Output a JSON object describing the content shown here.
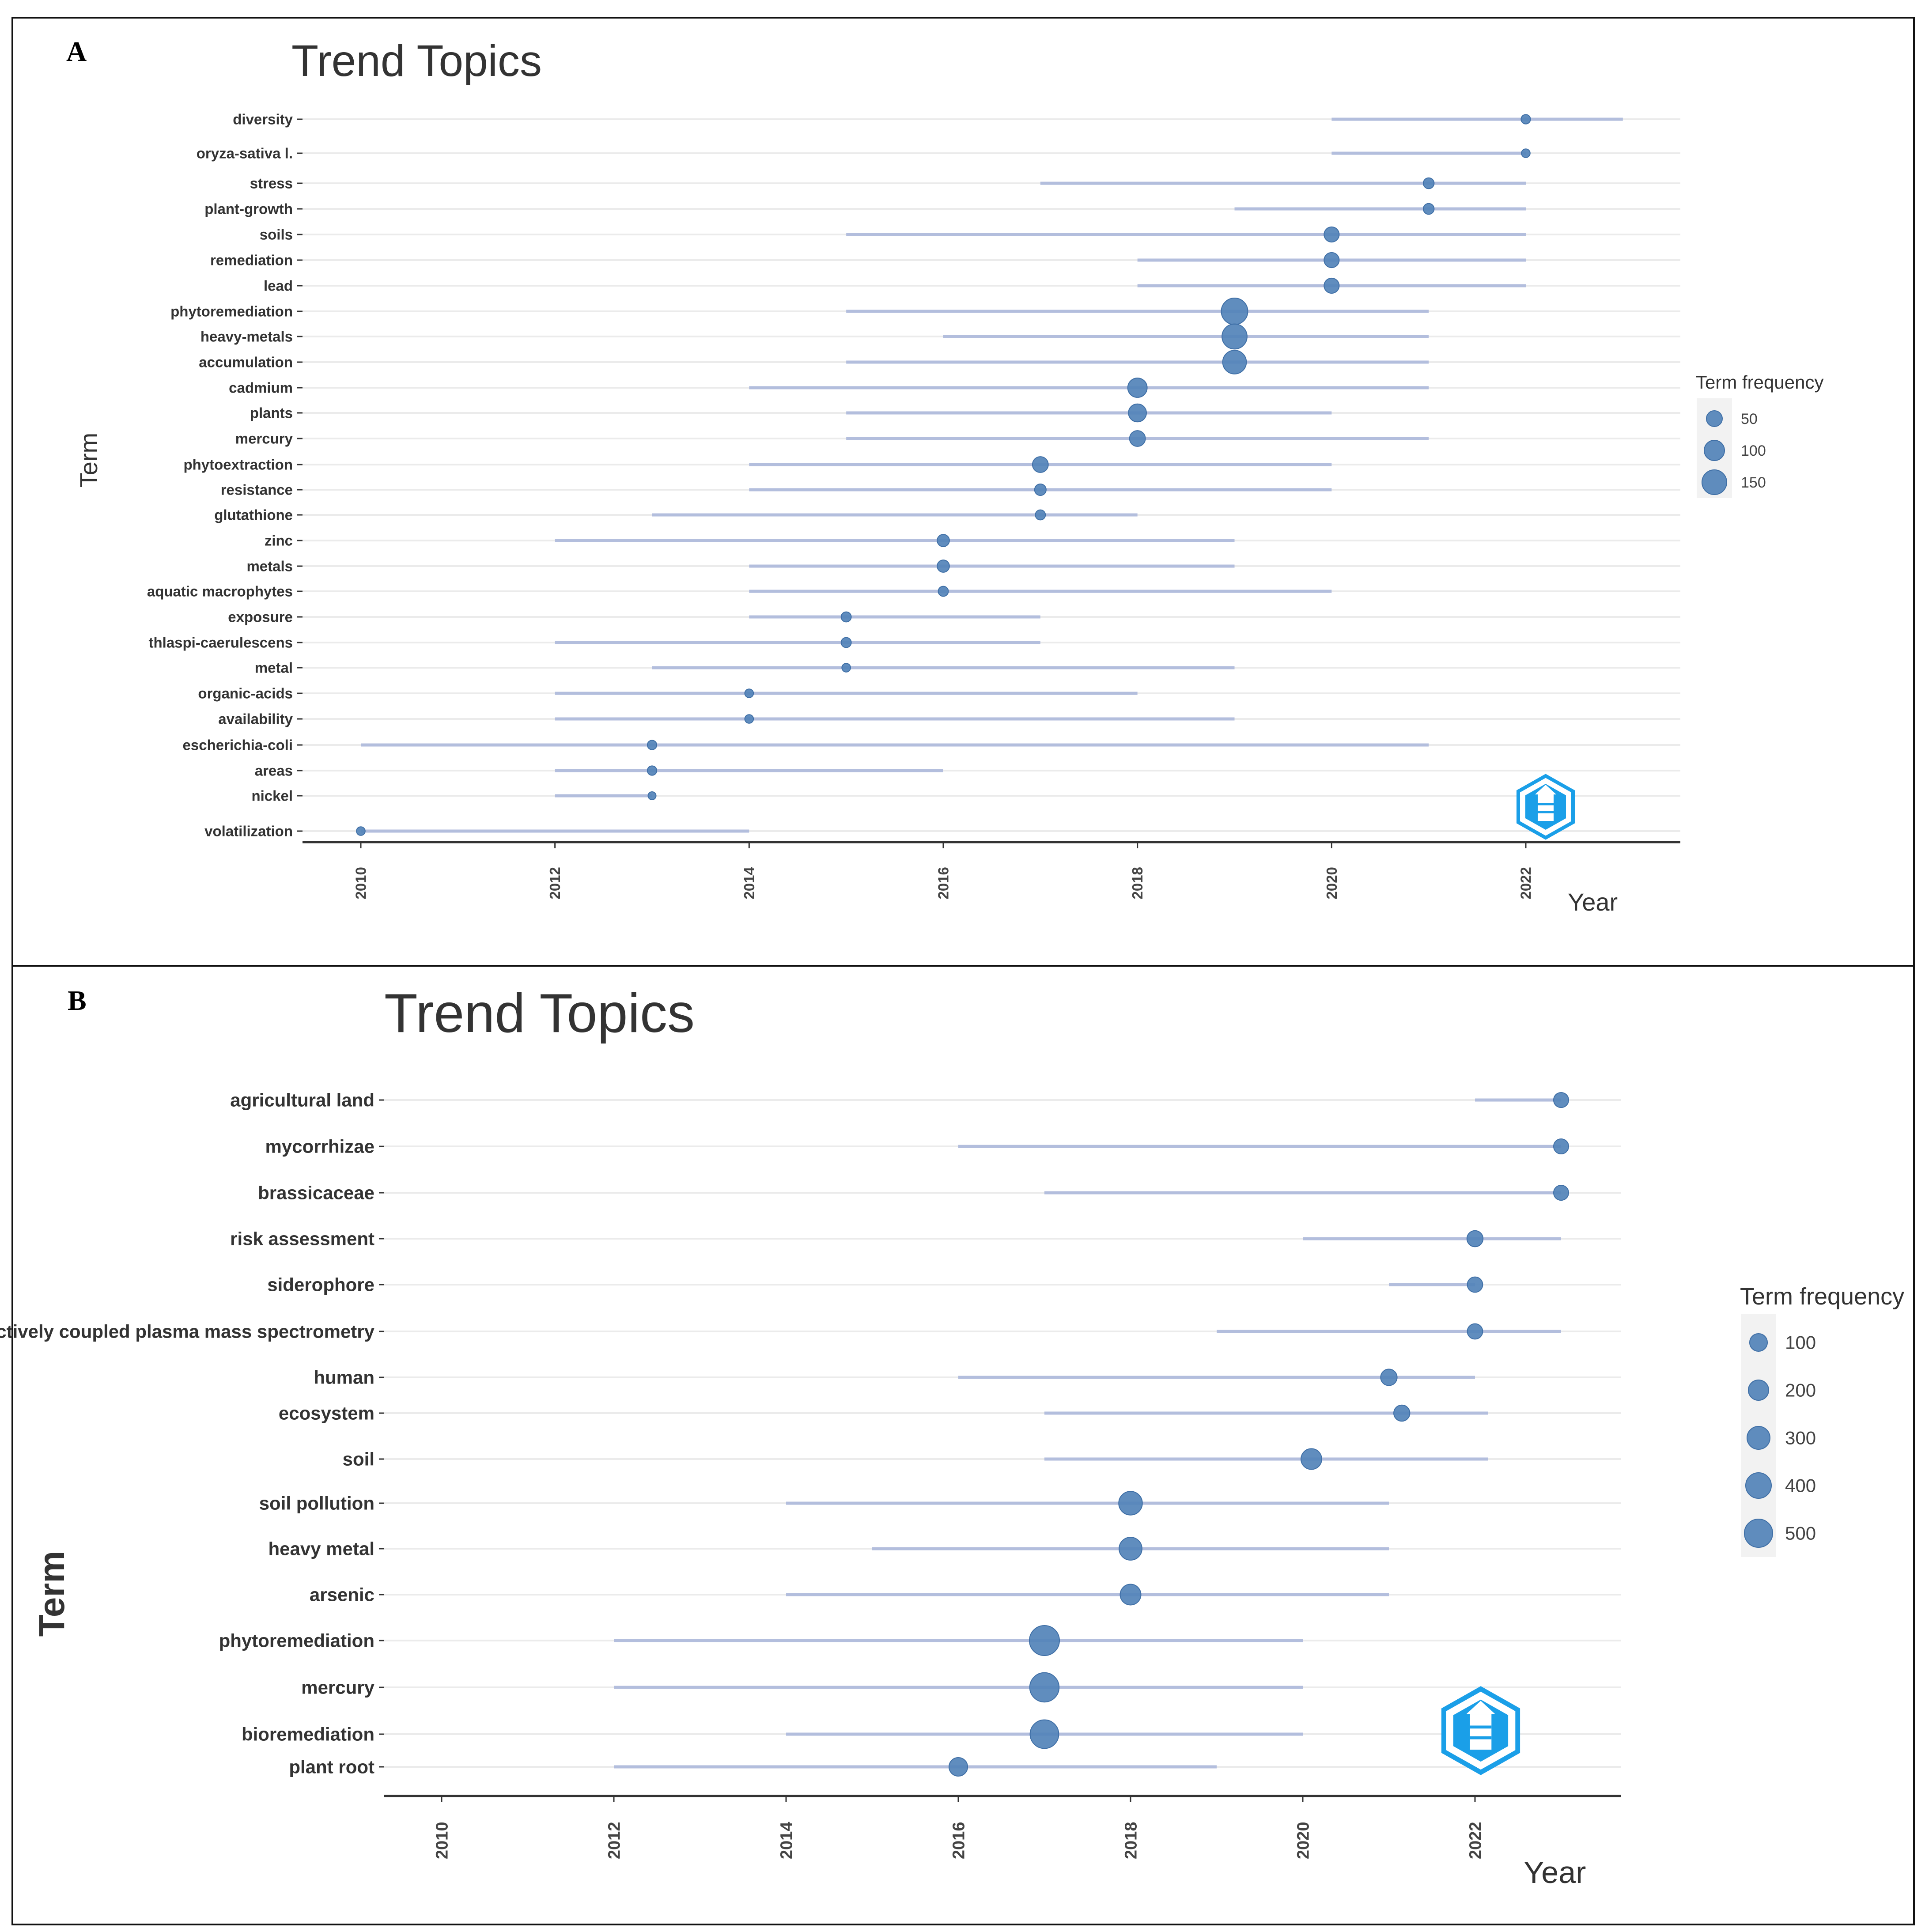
{
  "panels": [
    {
      "label": "A",
      "chart_data": {
        "type": "scatter",
        "title": "Trend Topics",
        "xlabel": "Year",
        "ylabel": "Term",
        "xlim": [
          2009.8,
          2023.5
        ],
        "x_ticks": [
          2010,
          2012,
          2014,
          2016,
          2018,
          2020,
          2022
        ],
        "legend": {
          "title": "Term frequency",
          "values": [
            50,
            100,
            150
          ],
          "position": "right"
        },
        "series": [
          {
            "term": "diversity",
            "start": 2020,
            "median": 2022,
            "end": 2023,
            "freq": 40
          },
          {
            "term": "oryza-sativa l.",
            "start": 2020,
            "median": 2022,
            "end": 2022,
            "freq": 35
          },
          {
            "term": "stress",
            "start": 2017,
            "median": 2021,
            "end": 2022,
            "freq": 50
          },
          {
            "term": "plant-growth",
            "start": 2019,
            "median": 2021,
            "end": 2022,
            "freq": 50
          },
          {
            "term": "soils",
            "start": 2015,
            "median": 2020,
            "end": 2022,
            "freq": 80
          },
          {
            "term": "remediation",
            "start": 2018,
            "median": 2020,
            "end": 2022,
            "freq": 80
          },
          {
            "term": "lead",
            "start": 2018,
            "median": 2020,
            "end": 2022,
            "freq": 80
          },
          {
            "term": "phytoremediation",
            "start": 2015,
            "median": 2019,
            "end": 2021,
            "freq": 160
          },
          {
            "term": "heavy-metals",
            "start": 2016,
            "median": 2019,
            "end": 2021,
            "freq": 150
          },
          {
            "term": "accumulation",
            "start": 2015,
            "median": 2019,
            "end": 2021,
            "freq": 140
          },
          {
            "term": "cadmium",
            "start": 2014,
            "median": 2018,
            "end": 2021,
            "freq": 110
          },
          {
            "term": "plants",
            "start": 2015,
            "median": 2018,
            "end": 2020,
            "freq": 100
          },
          {
            "term": "mercury",
            "start": 2015,
            "median": 2018,
            "end": 2021,
            "freq": 85
          },
          {
            "term": "phytoextraction",
            "start": 2014,
            "median": 2017,
            "end": 2020,
            "freq": 85
          },
          {
            "term": "resistance",
            "start": 2014,
            "median": 2017,
            "end": 2020,
            "freq": 55
          },
          {
            "term": "glutathione",
            "start": 2013,
            "median": 2017,
            "end": 2018,
            "freq": 45
          },
          {
            "term": "zinc",
            "start": 2012,
            "median": 2016,
            "end": 2019,
            "freq": 60
          },
          {
            "term": "metals",
            "start": 2014,
            "median": 2016,
            "end": 2019,
            "freq": 60
          },
          {
            "term": "aquatic macrophytes",
            "start": 2014,
            "median": 2016,
            "end": 2020,
            "freq": 45
          },
          {
            "term": "exposure",
            "start": 2014,
            "median": 2015,
            "end": 2017,
            "freq": 45
          },
          {
            "term": "thlaspi-caerulescens",
            "start": 2012,
            "median": 2015,
            "end": 2017,
            "freq": 45
          },
          {
            "term": "metal",
            "start": 2013,
            "median": 2015,
            "end": 2019,
            "freq": 35
          },
          {
            "term": "organic-acids",
            "start": 2012,
            "median": 2014,
            "end": 2018,
            "freq": 35
          },
          {
            "term": "availability",
            "start": 2012,
            "median": 2014,
            "end": 2019,
            "freq": 35
          },
          {
            "term": "escherichia-coli",
            "start": 2010,
            "median": 2013,
            "end": 2021,
            "freq": 40
          },
          {
            "term": "areas",
            "start": 2012,
            "median": 2013,
            "end": 2016,
            "freq": 40
          },
          {
            "term": "nickel",
            "start": 2012,
            "median": 2013,
            "end": 2013,
            "freq": 30
          },
          {
            "term": "volatilization",
            "start": 2010,
            "median": 2010,
            "end": 2014,
            "freq": 35
          }
        ]
      }
    },
    {
      "label": "B",
      "chart_data": {
        "type": "scatter",
        "title": "Trend Topics",
        "xlabel": "Year",
        "ylabel": "Term",
        "xlim": [
          2009.3,
          2023.6
        ],
        "x_ticks": [
          2010,
          2012,
          2014,
          2016,
          2018,
          2020,
          2022
        ],
        "legend": {
          "title": "Term frequency",
          "values": [
            100,
            200,
            300,
            400,
            500
          ],
          "position": "right"
        },
        "series": [
          {
            "term": "agricultural land",
            "start": 2022,
            "median": 2023,
            "end": 2023,
            "freq": 60
          },
          {
            "term": "mycorrhizae",
            "start": 2016,
            "median": 2023,
            "end": 2023,
            "freq": 60
          },
          {
            "term": "brassicaceae",
            "start": 2017,
            "median": 2023,
            "end": 2023,
            "freq": 60
          },
          {
            "term": "risk assessment",
            "start": 2020,
            "median": 2022,
            "end": 2023,
            "freq": 90
          },
          {
            "term": "siderophore",
            "start": 2021,
            "median": 2022,
            "end": 2022,
            "freq": 70
          },
          {
            "term": "inductively coupled plasma mass spectrometry",
            "start": 2019,
            "median": 2022,
            "end": 2023,
            "freq": 70
          },
          {
            "term": "human",
            "start": 2016,
            "median": 2021,
            "end": 2022,
            "freq": 100
          },
          {
            "term": "ecosystem",
            "start": 2017,
            "median": 2021.15,
            "end": 2022.15,
            "freq": 90
          },
          {
            "term": "soil",
            "start": 2017,
            "median": 2020.1,
            "end": 2022.15,
            "freq": 220
          },
          {
            "term": "soil pollution",
            "start": 2014,
            "median": 2018,
            "end": 2021,
            "freq": 300
          },
          {
            "term": "heavy metal",
            "start": 2015,
            "median": 2018,
            "end": 2021,
            "freq": 280
          },
          {
            "term": "arsenic",
            "start": 2014,
            "median": 2018,
            "end": 2021,
            "freq": 220
          },
          {
            "term": "phytoremediation",
            "start": 2012,
            "median": 2017,
            "end": 2020,
            "freq": 480
          },
          {
            "term": "mercury",
            "start": 2012,
            "median": 2017,
            "end": 2020,
            "freq": 460
          },
          {
            "term": "bioremediation",
            "start": 2014,
            "median": 2017,
            "end": 2020,
            "freq": 440
          },
          {
            "term": "plant root",
            "start": 2012,
            "median": 2016,
            "end": 2019,
            "freq": 160
          }
        ]
      }
    }
  ],
  "colors": {
    "line": "#b3bedd",
    "point": "#5283b8",
    "point_stroke": "#3f6fa6",
    "grid": "#ebebeb",
    "axis": "#333333",
    "legend_bg": "#f2f2f2"
  },
  "logo_icon": "bibliometrix-logo-icon"
}
